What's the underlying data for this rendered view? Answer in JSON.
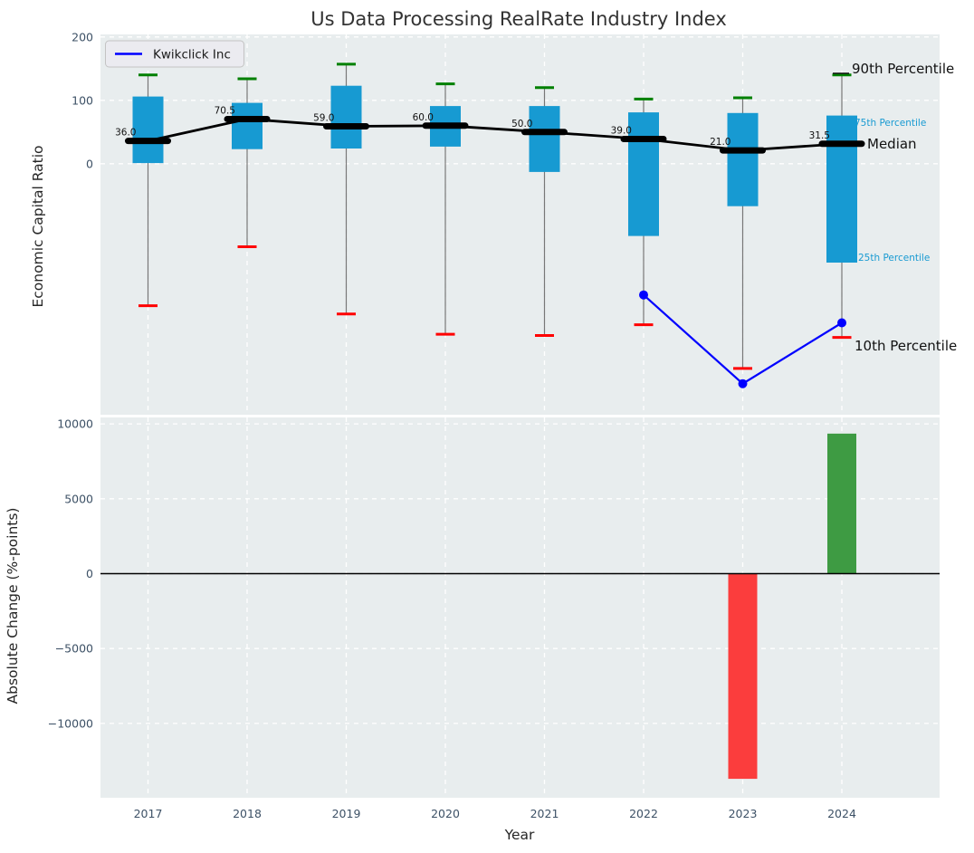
{
  "title": "Us Data Processing RealRate Industry Index",
  "colors": {
    "axes_background": "#e8edee",
    "gridline": "#ffffff",
    "box_fill": "#179ad2",
    "whisker": "#777777",
    "cap_90th": "#008000",
    "cap_10th": "#ff0000",
    "median_line": "#000000",
    "company_line": "#0000ff",
    "bar_positive": "#3e9b43",
    "bar_negative": "#fb3d3d",
    "tick_text": "#3d5166",
    "percentile_label_accent": "#189ad2",
    "zero_line": "#000000"
  },
  "chart_data": [
    {
      "type": "box-percentile",
      "title": "Us Data Processing RealRate Industry Index",
      "ylabel": "Economic Capital Ratio",
      "categories": [
        "2017",
        "2018",
        "2019",
        "2020",
        "2021",
        "2022",
        "2023",
        "2024"
      ],
      "series": [
        {
          "key": "p90",
          "name": "90th Percentile",
          "values": [
            140,
            134,
            157,
            126,
            120,
            102,
            104,
            140
          ]
        },
        {
          "key": "p75",
          "name": "75th Percentile",
          "values": [
            106,
            96,
            123,
            91,
            91,
            81,
            80,
            76
          ]
        },
        {
          "key": "median",
          "name": "Median",
          "values": [
            36.0,
            70.5,
            59.0,
            60.0,
            50.0,
            39.0,
            21.0,
            31.5
          ]
        },
        {
          "key": "p25",
          "name": "25th Percentile",
          "values": [
            1,
            23,
            24,
            27,
            -13,
            -114,
            -67,
            -156
          ]
        },
        {
          "key": "p10",
          "name": "10th Percentile",
          "values": [
            -224,
            -131,
            -237,
            -269,
            -271,
            -254,
            -323,
            -274
          ]
        },
        {
          "key": "company",
          "name": "Kwikclick Inc",
          "values": [
            null,
            null,
            null,
            null,
            null,
            -207,
            -347,
            -251
          ]
        }
      ],
      "median_labels": [
        "36.0",
        "70.5",
        "59.0",
        "60.0",
        "50.0",
        "39.0",
        "21.0",
        "31.5"
      ],
      "yticks": [
        {
          "v": 0,
          "t": "0"
        },
        {
          "v": 100,
          "t": "100"
        },
        {
          "v": 200,
          "t": "200"
        }
      ],
      "ylim": [
        -396,
        204
      ],
      "grid": true,
      "legend_label": "Kwikclick Inc",
      "legend_position": "upper left",
      "right_labels": [
        "90th Percentile",
        "75th Percentile",
        "Median",
        "25th Percentile",
        "10th Percentile"
      ]
    },
    {
      "type": "bar",
      "ylabel": "Absolute Change (%-points)",
      "xlabel": "Year",
      "categories": [
        "2017",
        "2018",
        "2019",
        "2020",
        "2021",
        "2022",
        "2023",
        "2024"
      ],
      "values": [
        0,
        0,
        0,
        0,
        0,
        0,
        -13700,
        9350
      ],
      "yticks": [
        {
          "v": -10000,
          "t": "−10000"
        },
        {
          "v": -5000,
          "t": "−5000"
        },
        {
          "v": 0,
          "t": "0"
        },
        {
          "v": 5000,
          "t": "5000"
        },
        {
          "v": 10000,
          "t": "10000"
        }
      ],
      "ylim": [
        -14965,
        10430
      ],
      "grid": true
    }
  ]
}
